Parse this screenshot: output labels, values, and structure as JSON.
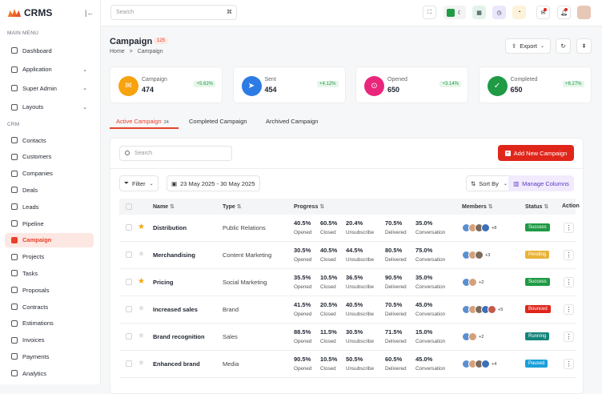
{
  "app": {
    "logo": "CRMS"
  },
  "sidebar": {
    "main_menu": "MAIN MENU",
    "crm_section": "CRM",
    "main_items": [
      {
        "label": "Dashboard"
      },
      {
        "label": "Application"
      },
      {
        "label": "Super Admin"
      },
      {
        "label": "Layouts"
      }
    ],
    "crm_items": [
      {
        "label": "Contacts"
      },
      {
        "label": "Customers"
      },
      {
        "label": "Companies"
      },
      {
        "label": "Deals"
      },
      {
        "label": "Leads"
      },
      {
        "label": "Pipeline"
      },
      {
        "label": "Campaign"
      },
      {
        "label": "Projects"
      },
      {
        "label": "Tasks"
      },
      {
        "label": "Proposals"
      },
      {
        "label": "Contracts"
      },
      {
        "label": "Estimations"
      },
      {
        "label": "Invoices"
      },
      {
        "label": "Payments"
      },
      {
        "label": "Analytics"
      }
    ]
  },
  "topbar": {
    "search_placeholder": "Search",
    "shortcut": "⌘"
  },
  "page": {
    "title": "Campaign",
    "count": "125",
    "breadcrumb_home": "Home",
    "breadcrumb_sep": ">",
    "breadcrumb_current": "Campaign",
    "export": "Export"
  },
  "stats": [
    {
      "label": "Campaign",
      "value": "474",
      "change": "+5.62%",
      "color": "#f7a20f"
    },
    {
      "label": "Sent",
      "value": "454",
      "change": "+4.12%",
      "color": "#2d7be5"
    },
    {
      "label": "Opened",
      "value": "650",
      "change": "+3.14%",
      "color": "#e9267b"
    },
    {
      "label": "Completed",
      "value": "650",
      "change": "+6.27%",
      "color": "#1f9a45"
    }
  ],
  "tabs": [
    {
      "label": "Active Campaign",
      "count": "24"
    },
    {
      "label": "Completed Campaign",
      "count": ""
    },
    {
      "label": "Archived Campaign",
      "count": ""
    }
  ],
  "toolbar": {
    "search_placeholder": "Search",
    "add_button": "Add New Campaign",
    "filter": "Filter",
    "date_range": "23 May 2025 - 30 May 2025",
    "sort": "Sort By",
    "manage_columns": "Manage Columns"
  },
  "table": {
    "headers": {
      "name": "Name",
      "type": "Type",
      "progress": "Progress",
      "members": "Members",
      "status": "Status",
      "action": "Action"
    },
    "progress_labels": [
      "Opened",
      "Closed",
      "Unsubscribe",
      "Delivered",
      "Conversation"
    ],
    "rows": [
      {
        "name": "Distribution",
        "type": "Public Relations",
        "starred": true,
        "progress": [
          "40.5%",
          "60.5%",
          "20.4%",
          "70.5%",
          "35.0%"
        ],
        "avatars": 4,
        "more": "+8",
        "status": "Success",
        "status_color": "#1f9a45"
      },
      {
        "name": "Merchandising",
        "type": "Content Marketing",
        "starred": false,
        "progress": [
          "30.5%",
          "40.5%",
          "44.5%",
          "80.5%",
          "75.0%"
        ],
        "avatars": 3,
        "more": "+3",
        "status": "Pending",
        "status_color": "#e8b33a"
      },
      {
        "name": "Pricing",
        "type": "Social Marketing",
        "starred": true,
        "progress": [
          "35.5%",
          "10.5%",
          "36.5%",
          "90.5%",
          "35.0%"
        ],
        "avatars": 2,
        "more": "+2",
        "status": "Success",
        "status_color": "#1f9a45"
      },
      {
        "name": "Increased sales",
        "type": "Brand",
        "starred": false,
        "progress": [
          "41.5%",
          "20.5%",
          "40.5%",
          "70.5%",
          "45.0%"
        ],
        "avatars": 5,
        "more": "+5",
        "status": "Bounced",
        "status_color": "#e0261b"
      },
      {
        "name": "Brand recognition",
        "type": "Sales",
        "starred": false,
        "progress": [
          "88.5%",
          "11.5%",
          "30.5%",
          "71.5%",
          "15.0%"
        ],
        "avatars": 2,
        "more": "+2",
        "status": "Running",
        "status_color": "#15857a"
      },
      {
        "name": "Enhanced brand",
        "type": "Media",
        "starred": false,
        "progress": [
          "90.5%",
          "10.5%",
          "50.5%",
          "60.5%",
          "45.0%"
        ],
        "avatars": 4,
        "more": "+4",
        "status": "Paused",
        "status_color": "#1aa0d9"
      }
    ]
  }
}
